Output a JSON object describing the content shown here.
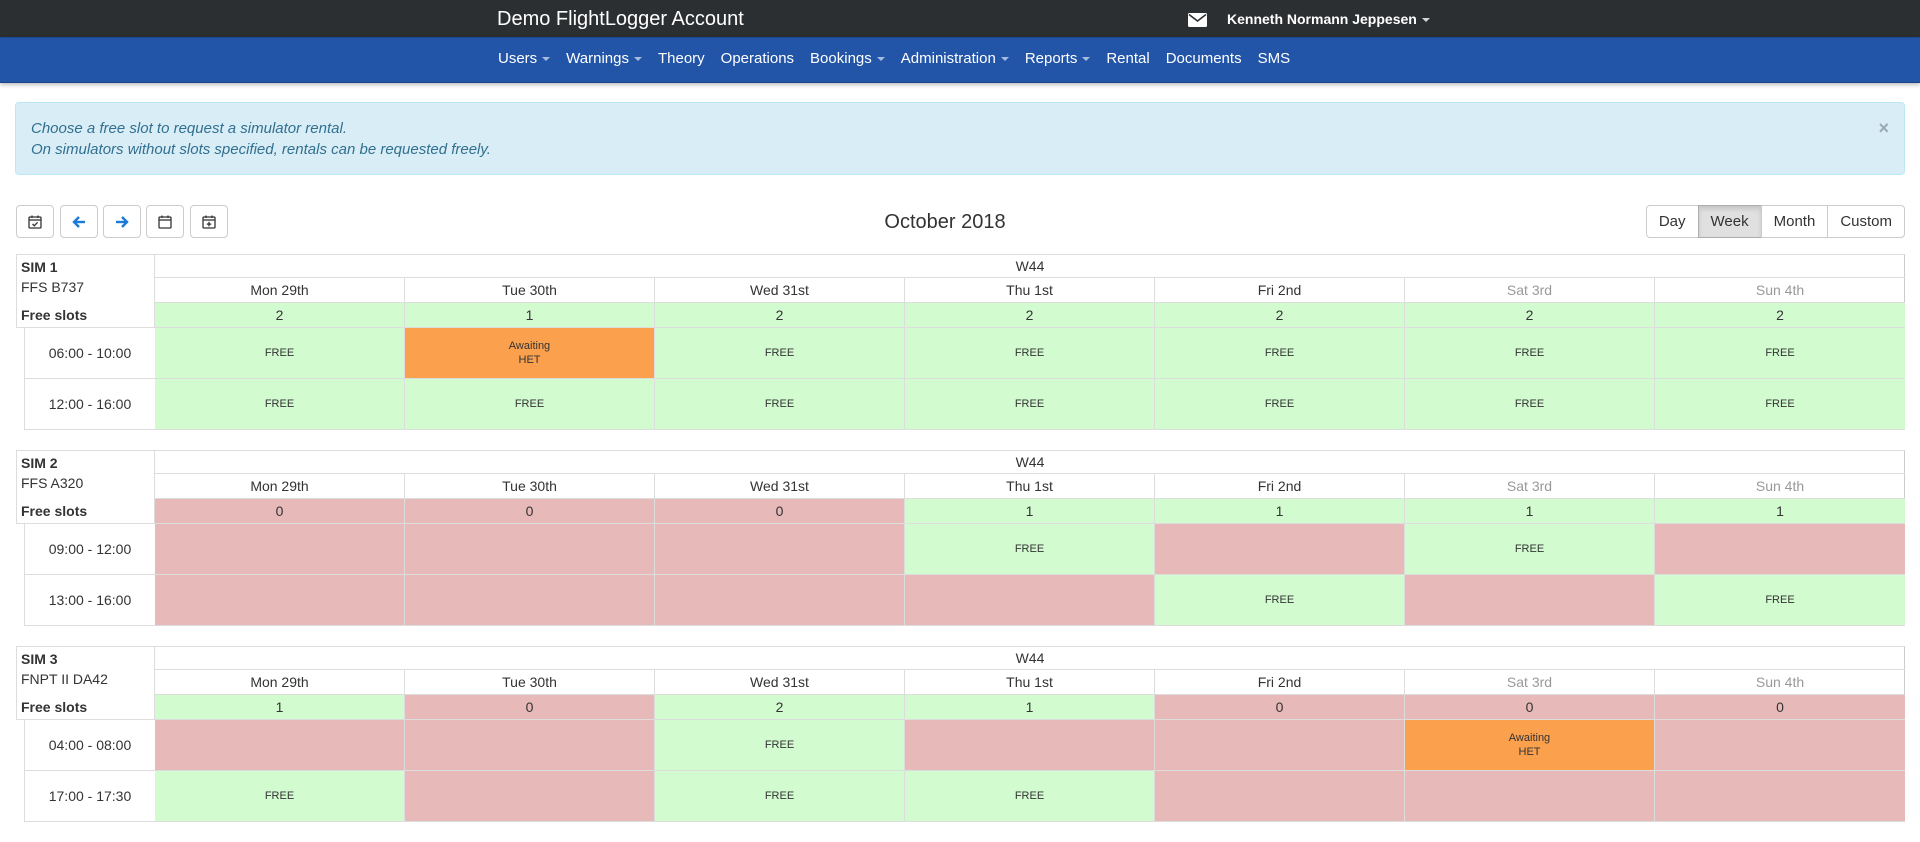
{
  "topbar": {
    "brand": "Demo FlightLogger Account",
    "user": "Kenneth Normann Jeppesen",
    "mail_icon": "envelope-icon"
  },
  "nav": [
    "Users",
    "Warnings",
    "Theory",
    "Operations",
    "Bookings",
    "Administration",
    "Reports",
    "Rental",
    "Documents",
    "SMS"
  ],
  "nav_dropdown": [
    true,
    true,
    false,
    false,
    true,
    true,
    true,
    false,
    false,
    false
  ],
  "alert": {
    "line1": "Choose a free slot to request a simulator rental.",
    "line2": "On simulators without slots specified, rentals can be requested freely.",
    "close": "×"
  },
  "calendar": {
    "title": "October 2018",
    "views": [
      "Day",
      "Week",
      "Month",
      "Custom"
    ],
    "active_view": "Week",
    "week": "W44",
    "days": [
      "Mon 29th",
      "Tue 30th",
      "Wed 31st",
      "Thu 1st",
      "Fri 2nd",
      "Sat 3rd",
      "Sun 4th"
    ],
    "weekend": [
      false,
      false,
      false,
      false,
      false,
      true,
      true
    ],
    "free_slots_label": "Free slots"
  },
  "colors": {
    "free": "#d2fbd0",
    "booked": "#e8b9b9",
    "awaiting": "#fba14e",
    "nav": "#2255a8",
    "topbar": "#2c2f31",
    "alert_bg": "#d9edf7"
  },
  "sims": [
    {
      "name": "SIM 1",
      "type": "FFS B737",
      "free_slots": [
        {
          "v": "2",
          "s": "g"
        },
        {
          "v": "1",
          "s": "g"
        },
        {
          "v": "2",
          "s": "g"
        },
        {
          "v": "2",
          "s": "g"
        },
        {
          "v": "2",
          "s": "g"
        },
        {
          "v": "2",
          "s": "g"
        },
        {
          "v": "2",
          "s": "g"
        }
      ],
      "slots": [
        {
          "time": "06:00 - 10:00",
          "cells": [
            {
              "s": "g",
              "t1": "FREE"
            },
            {
              "s": "o",
              "t1": "Awaiting",
              "t2": "HET"
            },
            {
              "s": "g",
              "t1": "FREE"
            },
            {
              "s": "g",
              "t1": "FREE"
            },
            {
              "s": "g",
              "t1": "FREE"
            },
            {
              "s": "g",
              "t1": "FREE"
            },
            {
              "s": "g",
              "t1": "FREE"
            }
          ]
        },
        {
          "time": "12:00 - 16:00",
          "cells": [
            {
              "s": "g",
              "t1": "FREE"
            },
            {
              "s": "g",
              "t1": "FREE"
            },
            {
              "s": "g",
              "t1": "FREE"
            },
            {
              "s": "g",
              "t1": "FREE"
            },
            {
              "s": "g",
              "t1": "FREE"
            },
            {
              "s": "g",
              "t1": "FREE"
            },
            {
              "s": "g",
              "t1": "FREE"
            }
          ]
        }
      ]
    },
    {
      "name": "SIM 2",
      "type": "FFS A320",
      "free_slots": [
        {
          "v": "0",
          "s": "r"
        },
        {
          "v": "0",
          "s": "r"
        },
        {
          "v": "0",
          "s": "r"
        },
        {
          "v": "1",
          "s": "g"
        },
        {
          "v": "1",
          "s": "g"
        },
        {
          "v": "1",
          "s": "g"
        },
        {
          "v": "1",
          "s": "g"
        }
      ],
      "slots": [
        {
          "time": "09:00 - 12:00",
          "cells": [
            {
              "s": "r"
            },
            {
              "s": "r"
            },
            {
              "s": "r"
            },
            {
              "s": "g",
              "t1": "FREE"
            },
            {
              "s": "r"
            },
            {
              "s": "g",
              "t1": "FREE"
            },
            {
              "s": "r"
            }
          ]
        },
        {
          "time": "13:00 - 16:00",
          "cells": [
            {
              "s": "r"
            },
            {
              "s": "r"
            },
            {
              "s": "r"
            },
            {
              "s": "r"
            },
            {
              "s": "g",
              "t1": "FREE"
            },
            {
              "s": "r"
            },
            {
              "s": "g",
              "t1": "FREE"
            }
          ]
        }
      ]
    },
    {
      "name": "SIM 3",
      "type": "FNPT II DA42",
      "free_slots": [
        {
          "v": "1",
          "s": "g"
        },
        {
          "v": "0",
          "s": "r"
        },
        {
          "v": "2",
          "s": "g"
        },
        {
          "v": "1",
          "s": "g"
        },
        {
          "v": "0",
          "s": "r"
        },
        {
          "v": "0",
          "s": "r"
        },
        {
          "v": "0",
          "s": "r"
        }
      ],
      "slots": [
        {
          "time": "04:00 - 08:00",
          "cells": [
            {
              "s": "r"
            },
            {
              "s": "r"
            },
            {
              "s": "g",
              "t1": "FREE"
            },
            {
              "s": "r"
            },
            {
              "s": "r"
            },
            {
              "s": "o",
              "t1": "Awaiting",
              "t2": "HET"
            },
            {
              "s": "r"
            }
          ]
        },
        {
          "time": "17:00 - 17:30",
          "cells": [
            {
              "s": "g",
              "t1": "FREE"
            },
            {
              "s": "r"
            },
            {
              "s": "g",
              "t1": "FREE"
            },
            {
              "s": "g",
              "t1": "FREE"
            },
            {
              "s": "r"
            },
            {
              "s": "r"
            },
            {
              "s": "r"
            }
          ]
        }
      ]
    }
  ]
}
